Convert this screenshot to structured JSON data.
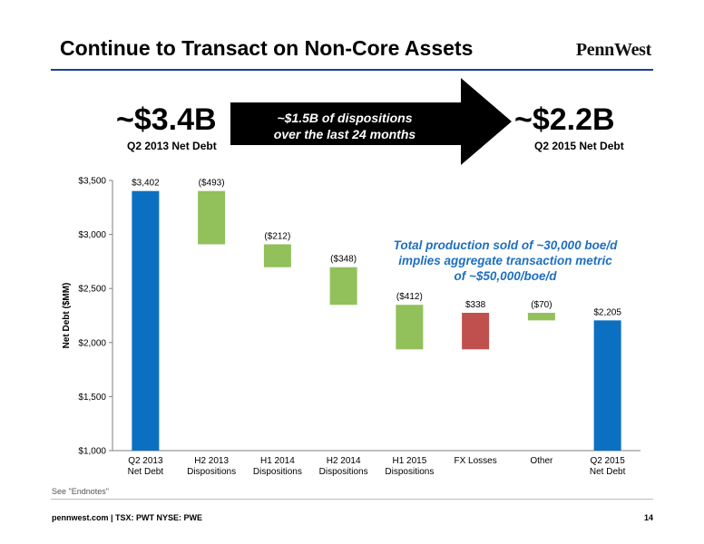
{
  "header": {
    "title": "Continue to Transact on Non-Core Assets",
    "logo": "PennWest"
  },
  "summary": {
    "left_value": "~$3.4B",
    "left_label": "Q2 2013 Net Debt",
    "arrow_line1": "~$1.5B of dispositions",
    "arrow_line2": "over the last 24 months",
    "right_value": "~$2.2B",
    "right_label": "Q2 2015 Net Debt"
  },
  "annotation": {
    "line1": "Total production sold of ~30,000 boe/d",
    "line2": "implies aggregate transaction metric",
    "line3": "of ~$50,000/boe/d"
  },
  "footnote": "See \"Endnotes\"",
  "footer": {
    "text": "pennwest.com | TSX: PWT  NYSE: PWE",
    "page": "14"
  },
  "colors": {
    "total": "#0b70c1",
    "decrease": "#92c05b",
    "increase": "#c0504d",
    "accent_rule": "#1c3f94",
    "annotation": "#1f6fbf"
  },
  "chart_data": {
    "type": "bar",
    "subtype": "waterfall",
    "ylabel": "Net Debt ($MM)",
    "ylim": [
      1000,
      3500
    ],
    "yticks": [
      1000,
      1500,
      2000,
      2500,
      3000,
      3500
    ],
    "ytick_labels": [
      "$1,000",
      "$1,500",
      "$2,000",
      "$2,500",
      "$3,000",
      "$3,500"
    ],
    "grid": false,
    "bars": [
      {
        "category_line1": "Q2 2013",
        "category_line2": "Net Debt",
        "kind": "total",
        "start": 0,
        "end": 3402,
        "label": "$3,402"
      },
      {
        "category_line1": "H2 2013",
        "category_line2": "Dispositions",
        "kind": "decrease",
        "start": 3402,
        "end": 2909,
        "label": "($493)"
      },
      {
        "category_line1": "H1 2014",
        "category_line2": "Dispositions",
        "kind": "decrease",
        "start": 2909,
        "end": 2697,
        "label": "($212)"
      },
      {
        "category_line1": "H2 2014",
        "category_line2": "Dispositions",
        "kind": "decrease",
        "start": 2697,
        "end": 2349,
        "label": "($348)"
      },
      {
        "category_line1": "H1 2015",
        "category_line2": "Dispositions",
        "kind": "decrease",
        "start": 2349,
        "end": 1937,
        "label": "($412)"
      },
      {
        "category_line1": "FX Losses",
        "category_line2": "",
        "kind": "increase",
        "start": 1937,
        "end": 2275,
        "label": "$338"
      },
      {
        "category_line1": "Other",
        "category_line2": "",
        "kind": "decrease",
        "start": 2275,
        "end": 2205,
        "label": "($70)"
      },
      {
        "category_line1": "Q2 2015",
        "category_line2": "Net Debt",
        "kind": "total",
        "start": 0,
        "end": 2205,
        "label": "$2,205"
      }
    ]
  }
}
